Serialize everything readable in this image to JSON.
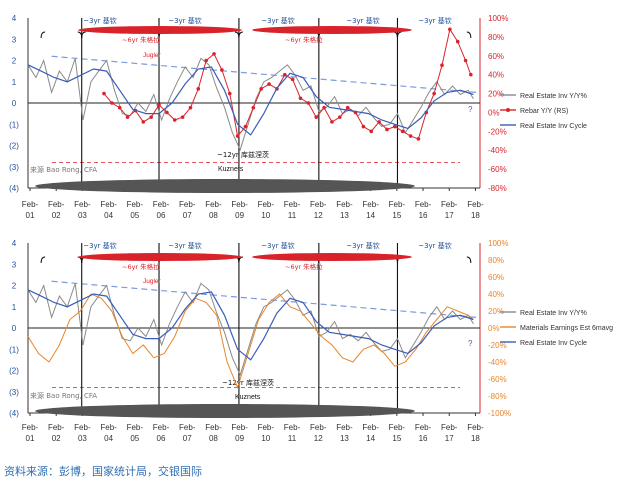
{
  "chart_data": [
    {
      "type": "line",
      "x_ticks": [
        "Feb-01",
        "Feb-02",
        "Feb-03",
        "Feb-04",
        "Feb-05",
        "Feb-06",
        "Feb-07",
        "Feb-08",
        "Feb-09",
        "Feb-10",
        "Feb-11",
        "Feb-12",
        "Feb-13",
        "Feb-14",
        "Feb-15",
        "Feb-16",
        "Feb-17",
        "Feb-18"
      ],
      "left_axis": {
        "ticks": [
          "4",
          "3",
          "2",
          "1",
          "0",
          "(1)",
          "(2)",
          "(3)",
          "(4)"
        ],
        "ylim": [
          -4,
          4
        ]
      },
      "right_axis": {
        "ticks": [
          "100%",
          "80%",
          "60%",
          "40%",
          "20%",
          "0%",
          "-20%",
          "-40%",
          "-60%",
          "-80%"
        ],
        "ylim": [
          -80,
          100
        ]
      },
      "series": [
        {
          "name": "Real Estate Inv Y/Y%",
          "axis": "left",
          "color": "#8a8a8a",
          "x": [
            2001.1,
            2001.4,
            2001.7,
            2002.0,
            2002.3,
            2002.6,
            2002.9,
            2003.2,
            2003.5,
            2003.8,
            2004.1,
            2004.4,
            2004.7,
            2005.0,
            2005.3,
            2005.6,
            2005.9,
            2006.2,
            2006.5,
            2006.8,
            2007.1,
            2007.4,
            2007.7,
            2008.0,
            2008.3,
            2008.6,
            2008.9,
            2009.2,
            2009.5,
            2009.8,
            2010.1,
            2010.4,
            2010.7,
            2011.0,
            2011.3,
            2011.6,
            2011.9,
            2012.2,
            2012.5,
            2012.8,
            2013.1,
            2013.4,
            2013.7,
            2014.0,
            2014.3,
            2014.6,
            2014.9,
            2015.2,
            2015.5,
            2015.8,
            2016.1,
            2016.4,
            2016.7,
            2017.0,
            2017.3,
            2017.6,
            2017.9,
            2018.1
          ],
          "y": [
            1.8,
            1.2,
            2.0,
            0.5,
            1.5,
            1.0,
            2.1,
            -0.8,
            1.0,
            1.5,
            2.0,
            0.6,
            -0.5,
            -0.6,
            0.0,
            -0.4,
            0.4,
            -0.8,
            0.2,
            1.0,
            1.7,
            1.2,
            2.1,
            1.8,
            0.7,
            -0.2,
            -1.4,
            -2.2,
            -1.0,
            0.2,
            1.0,
            1.2,
            1.5,
            1.8,
            1.3,
            0.6,
            0.8,
            -0.4,
            -0.2,
            0.3,
            -0.5,
            -0.3,
            -0.6,
            -0.2,
            -0.7,
            -1.1,
            -1.0,
            -0.5,
            -1.4,
            -0.8,
            -0.2,
            0.5,
            1.0,
            0.4,
            0.8,
            0.4,
            0.6,
            0.2
          ]
        },
        {
          "name": "Rebar Y/Y (RS)",
          "axis": "right",
          "color": "#d9232b",
          "x": [
            2004.0,
            2004.3,
            2004.6,
            2004.9,
            2005.2,
            2005.5,
            2005.8,
            2006.1,
            2006.4,
            2006.7,
            2007.0,
            2007.3,
            2007.6,
            2007.9,
            2008.2,
            2008.5,
            2008.8,
            2009.1,
            2009.4,
            2009.7,
            2010.0,
            2010.3,
            2010.6,
            2010.9,
            2011.2,
            2011.5,
            2011.8,
            2012.1,
            2012.4,
            2012.7,
            2013.0,
            2013.3,
            2013.6,
            2013.9,
            2014.2,
            2014.5,
            2014.8,
            2015.1,
            2015.4,
            2015.7,
            2016.0,
            2016.3,
            2016.6,
            2016.9,
            2017.2,
            2017.5,
            2017.8,
            2018.0
          ],
          "y": [
            20,
            10,
            5,
            -5,
            2,
            -10,
            -5,
            8,
            0,
            -8,
            -5,
            5,
            25,
            55,
            62,
            45,
            20,
            -25,
            -15,
            5,
            25,
            30,
            25,
            40,
            35,
            15,
            10,
            -5,
            5,
            -10,
            -5,
            5,
            0,
            -15,
            -20,
            -10,
            -18,
            -15,
            -20,
            -25,
            -28,
            0,
            20,
            50,
            88,
            75,
            55,
            40
          ]
        },
        {
          "name": "Real Estate Inv Cycle",
          "axis": "left",
          "color": "#3b5db8",
          "x": [
            2001.1,
            2001.6,
            2002.1,
            2002.6,
            2003.1,
            2003.6,
            2004.1,
            2004.6,
            2005.1,
            2005.6,
            2006.1,
            2006.6,
            2007.1,
            2007.6,
            2008.1,
            2008.6,
            2009.1,
            2009.6,
            2010.1,
            2010.6,
            2011.1,
            2011.6,
            2012.1,
            2012.6,
            2013.1,
            2013.6,
            2014.1,
            2014.6,
            2015.1,
            2015.6,
            2016.1,
            2016.6,
            2017.1,
            2017.6,
            2018.1
          ],
          "y": [
            1.8,
            1.5,
            1.2,
            1.0,
            1.3,
            1.6,
            1.5,
            0.6,
            -0.3,
            -0.5,
            -0.5,
            0.0,
            0.9,
            1.6,
            1.7,
            0.6,
            -1.0,
            -1.5,
            -0.5,
            0.7,
            1.4,
            1.2,
            0.3,
            -0.2,
            -0.3,
            -0.4,
            -0.5,
            -0.8,
            -1.0,
            -1.2,
            -0.7,
            0.1,
            0.5,
            0.6,
            0.4
          ]
        }
      ],
      "annotations": [
        "~3yr 基钦",
        "~3yr 基钦",
        "~3yr 基钦",
        "~3yr 基钦",
        "~3yr 基钦",
        "~6yr 朱格拉",
        "~6yr 朱格拉",
        "Jugler",
        "~12yr 库兹涅茨",
        "Kuznets",
        "来源 Bao Rong, CFA",
        "?"
      ],
      "cycle_boundaries": [
        2003.15,
        2006.1,
        2009.15,
        2012.2,
        2015.2
      ]
    },
    {
      "type": "line",
      "x_ticks": [
        "Feb-01",
        "Feb-02",
        "Feb-03",
        "Feb-04",
        "Feb-05",
        "Feb-06",
        "Feb-07",
        "Feb-08",
        "Feb-09",
        "Feb-10",
        "Feb-11",
        "Feb-12",
        "Feb-13",
        "Feb-14",
        "Feb-15",
        "Feb-16",
        "Feb-17",
        "Feb-18"
      ],
      "left_axis": {
        "ticks": [
          "4",
          "3",
          "2",
          "1",
          "0",
          "(1)",
          "(2)",
          "(3)",
          "(4)"
        ],
        "ylim": [
          -4,
          4
        ]
      },
      "right_axis": {
        "ticks": [
          "100%",
          "80%",
          "60%",
          "40%",
          "20%",
          "0%",
          "-20%",
          "-40%",
          "-60%",
          "-80%",
          "-100%"
        ],
        "ylim": [
          -100,
          100
        ]
      },
      "series": [
        {
          "name": "Real Estate Inv Y/Y%",
          "axis": "left",
          "color": "#8a8a8a",
          "x": [
            2001.1,
            2001.4,
            2001.7,
            2002.0,
            2002.3,
            2002.6,
            2002.9,
            2003.2,
            2003.5,
            2003.8,
            2004.1,
            2004.4,
            2004.7,
            2005.0,
            2005.3,
            2005.6,
            2005.9,
            2006.2,
            2006.5,
            2006.8,
            2007.1,
            2007.4,
            2007.7,
            2008.0,
            2008.3,
            2008.6,
            2008.9,
            2009.2,
            2009.5,
            2009.8,
            2010.1,
            2010.4,
            2010.7,
            2011.0,
            2011.3,
            2011.6,
            2011.9,
            2012.2,
            2012.5,
            2012.8,
            2013.1,
            2013.4,
            2013.7,
            2014.0,
            2014.3,
            2014.6,
            2014.9,
            2015.2,
            2015.5,
            2015.8,
            2016.1,
            2016.4,
            2016.7,
            2017.0,
            2017.3,
            2017.6,
            2017.9,
            2018.1
          ],
          "y": [
            1.8,
            1.2,
            2.0,
            0.5,
            1.5,
            1.0,
            2.1,
            -0.8,
            1.0,
            1.5,
            2.0,
            0.6,
            -0.5,
            -0.6,
            0.0,
            -0.4,
            0.4,
            -0.8,
            0.2,
            1.0,
            1.7,
            1.2,
            2.1,
            1.8,
            0.7,
            -0.2,
            -1.4,
            -2.2,
            -1.0,
            0.2,
            1.0,
            1.2,
            1.5,
            1.8,
            1.3,
            0.6,
            0.8,
            -0.4,
            -0.2,
            0.3,
            -0.5,
            -0.3,
            -0.6,
            -0.2,
            -0.7,
            -1.1,
            -1.0,
            -0.5,
            -1.4,
            -0.8,
            -0.2,
            0.5,
            1.0,
            0.4,
            0.8,
            0.4,
            0.6,
            0.2
          ]
        },
        {
          "name": "Materials Earnings Est 6mavg",
          "axis": "right",
          "color": "#e8862a",
          "x": [
            2001.1,
            2001.5,
            2001.9,
            2002.3,
            2002.7,
            2003.1,
            2003.5,
            2003.9,
            2004.3,
            2004.7,
            2005.1,
            2005.5,
            2005.9,
            2006.3,
            2006.7,
            2007.1,
            2007.5,
            2007.9,
            2008.3,
            2008.7,
            2009.1,
            2009.5,
            2009.9,
            2010.3,
            2010.7,
            2011.1,
            2011.5,
            2011.9,
            2012.3,
            2012.7,
            2013.1,
            2013.5,
            2013.9,
            2014.3,
            2014.7,
            2015.1,
            2015.5,
            2015.9,
            2016.3,
            2016.7,
            2017.1,
            2017.5,
            2017.9,
            2018.1
          ],
          "y": [
            -10,
            -30,
            -40,
            -20,
            10,
            20,
            40,
            35,
            20,
            -10,
            -30,
            -20,
            -35,
            -30,
            -10,
            20,
            35,
            30,
            15,
            -40,
            -70,
            -30,
            10,
            30,
            40,
            25,
            20,
            5,
            -10,
            -20,
            -35,
            -40,
            -25,
            -20,
            -30,
            -45,
            -40,
            -25,
            -5,
            10,
            25,
            20,
            15,
            10
          ]
        },
        {
          "name": "Real Estate Inv Cycle",
          "axis": "left",
          "color": "#3b5db8",
          "x": [
            2001.1,
            2001.6,
            2002.1,
            2002.6,
            2003.1,
            2003.6,
            2004.1,
            2004.6,
            2005.1,
            2005.6,
            2006.1,
            2006.6,
            2007.1,
            2007.6,
            2008.1,
            2008.6,
            2009.1,
            2009.6,
            2010.1,
            2010.6,
            2011.1,
            2011.6,
            2012.1,
            2012.6,
            2013.1,
            2013.6,
            2014.1,
            2014.6,
            2015.1,
            2015.6,
            2016.1,
            2016.6,
            2017.1,
            2017.6,
            2018.1
          ],
          "y": [
            1.8,
            1.5,
            1.2,
            1.0,
            1.3,
            1.6,
            1.5,
            0.6,
            -0.3,
            -0.5,
            -0.5,
            0.0,
            0.9,
            1.6,
            1.7,
            0.6,
            -1.0,
            -1.5,
            -0.5,
            0.7,
            1.4,
            1.2,
            0.3,
            -0.2,
            -0.3,
            -0.4,
            -0.5,
            -0.8,
            -1.0,
            -1.2,
            -0.7,
            0.1,
            0.5,
            0.6,
            0.4
          ]
        }
      ],
      "annotations": [
        "~3yr 基钦",
        "~3yr 基钦",
        "~3yr 基钦",
        "~3yr 基钦",
        "~3yr 基钦",
        "~6yr 朱格拉",
        "~6yr 朱格拉",
        "Jugler",
        "~12yr 库兹涅茨",
        "Kuznets",
        "来源 Bao Rong, CFA",
        "?"
      ],
      "cycle_boundaries": [
        2003.15,
        2006.1,
        2009.15,
        2012.2,
        2015.2
      ]
    }
  ],
  "source_note": "资料来源：彭博，国家统计局，交银国际"
}
